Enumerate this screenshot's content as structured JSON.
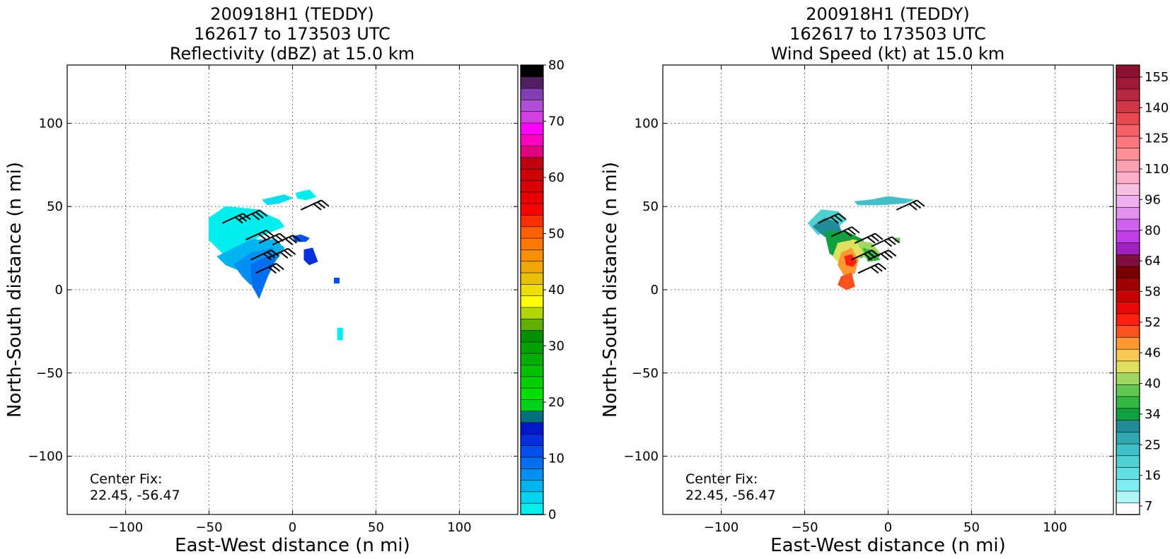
{
  "chart_data": [
    {
      "type": "heatmap",
      "title": [
        "200918H1 (TEDDY)",
        "162617 to 173503 UTC",
        "Reflectivity (dBZ) at 15.0 km"
      ],
      "xlabel": "East-West distance (n mi)",
      "ylabel": "North-South distance (n mi)",
      "xlim": [
        -135,
        135
      ],
      "ylim": [
        -135,
        135
      ],
      "xticks": [
        -100,
        -50,
        0,
        50,
        100
      ],
      "yticks": [
        -100,
        -50,
        0,
        50,
        100
      ],
      "xtick_labels": [
        "−100",
        "−50",
        "0",
        "50",
        "100"
      ],
      "ytick_labels": [
        "−100",
        "−50",
        "0",
        "50",
        "100"
      ],
      "grid": true,
      "annotation": [
        "Center Fix:",
        "22.45, -56.47"
      ],
      "colorbar": {
        "min": 0,
        "max": 80,
        "tick_values": [
          0,
          10,
          20,
          30,
          40,
          50,
          60,
          70,
          80
        ],
        "tick_labels": [
          "0",
          "10",
          "20",
          "30",
          "40",
          "50",
          "60",
          "70",
          "80"
        ],
        "colors": [
          "#00eeee",
          "#00d4ee",
          "#00b4f0",
          "#0090f0",
          "#0070f0",
          "#0050f0",
          "#0030e0",
          "#0018c8",
          "#007080",
          "#00d018",
          "#00e000",
          "#00d000",
          "#00c000",
          "#00b000",
          "#00a000",
          "#009000",
          "#60b000",
          "#b0d800",
          "#ffff00",
          "#eede00",
          "#e8c000",
          "#f0a800",
          "#f89000",
          "#ff7800",
          "#ff6000",
          "#ff3000",
          "#ff0000",
          "#e80000",
          "#d80000",
          "#cc0000",
          "#c00010",
          "#e00080",
          "#ff00c0",
          "#ff00ff",
          "#d040e0",
          "#b050d8",
          "#8040b0",
          "#502060",
          "#000000"
        ]
      },
      "regions": [
        {
          "color": "#00eeee",
          "points": [
            [
              -50,
              43
            ],
            [
              -40,
              50
            ],
            [
              -20,
              48
            ],
            [
              -15,
              45
            ],
            [
              -8,
              42
            ],
            [
              -5,
              38
            ],
            [
              -20,
              32
            ],
            [
              -35,
              20
            ],
            [
              -42,
              22
            ],
            [
              -50,
              30
            ]
          ]
        },
        {
          "color": "#00e0f0",
          "points": [
            [
              -18,
              54
            ],
            [
              -5,
              57
            ],
            [
              0,
              55
            ],
            [
              -8,
              52
            ],
            [
              -15,
              51
            ]
          ]
        },
        {
          "color": "#00eeee",
          "points": [
            [
              2,
              58
            ],
            [
              10,
              60
            ],
            [
              14,
              56
            ],
            [
              8,
              54
            ],
            [
              3,
              55
            ]
          ]
        },
        {
          "color": "#00b4f0",
          "points": [
            [
              -45,
              20
            ],
            [
              -35,
              25
            ],
            [
              -25,
              30
            ],
            [
              -10,
              30
            ],
            [
              -5,
              25
            ],
            [
              -10,
              18
            ],
            [
              -20,
              10
            ],
            [
              -28,
              10
            ],
            [
              -40,
              15
            ]
          ]
        },
        {
          "color": "#0090f0",
          "points": [
            [
              -35,
              15
            ],
            [
              -25,
              22
            ],
            [
              -12,
              25
            ],
            [
              -8,
              20
            ],
            [
              -15,
              12
            ],
            [
              -20,
              5
            ],
            [
              -25,
              3
            ],
            [
              -30,
              8
            ]
          ]
        },
        {
          "color": "#0070f0",
          "points": [
            [
              -25,
              15
            ],
            [
              -15,
              20
            ],
            [
              -10,
              18
            ],
            [
              -15,
              8
            ],
            [
              -18,
              0
            ],
            [
              -20,
              -5
            ],
            [
              -24,
              2
            ]
          ]
        },
        {
          "color": "#0050f0",
          "points": [
            [
              0,
              32
            ],
            [
              5,
              33
            ],
            [
              10,
              31
            ],
            [
              8,
              29
            ],
            [
              2,
              29
            ]
          ]
        },
        {
          "color": "#0030e0",
          "points": [
            [
              7,
              24
            ],
            [
              12,
              25
            ],
            [
              15,
              17
            ],
            [
              10,
              15
            ],
            [
              7,
              18
            ]
          ]
        },
        {
          "color": "#0050f0",
          "points": [
            [
              25,
              7
            ],
            [
              28,
              7
            ],
            [
              28,
              4
            ],
            [
              25,
              4
            ]
          ]
        },
        {
          "color": "#00eeee",
          "points": [
            [
              27,
              -23
            ],
            [
              30,
              -23
            ],
            [
              30,
              -30
            ],
            [
              27,
              -30
            ]
          ]
        }
      ],
      "wind_barbs": [
        {
          "x": -42,
          "y": 40
        },
        {
          "x": -32,
          "y": 42
        },
        {
          "x": -28,
          "y": 30
        },
        {
          "x": -20,
          "y": 28
        },
        {
          "x": -12,
          "y": 27
        },
        {
          "x": -25,
          "y": 18
        },
        {
          "x": -15,
          "y": 19
        },
        {
          "x": -22,
          "y": 10
        },
        {
          "x": 5,
          "y": 48
        }
      ]
    },
    {
      "type": "heatmap",
      "title": [
        "200918H1 (TEDDY)",
        "162617 to 173503 UTC",
        "Wind Speed (kt) at 15.0 km"
      ],
      "xlabel": "East-West distance (n mi)",
      "ylabel": "North-South distance (n mi)",
      "xlim": [
        -135,
        135
      ],
      "ylim": [
        -135,
        135
      ],
      "xticks": [
        -100,
        -50,
        0,
        50,
        100
      ],
      "yticks": [
        -100,
        -50,
        0,
        50,
        100
      ],
      "xtick_labels": [
        "−100",
        "−50",
        "0",
        "50",
        "100"
      ],
      "ytick_labels": [
        "−100",
        "−50",
        "0",
        "50",
        "100"
      ],
      "grid": true,
      "annotation": [
        "Center Fix:",
        "22.45, -56.47"
      ],
      "colorbar": {
        "tick_labels": [
          "7",
          "16",
          "25",
          "34",
          "40",
          "46",
          "52",
          "58",
          "64",
          "80",
          "96",
          "110",
          "125",
          "140",
          "155"
        ],
        "colors": [
          "#ffffff",
          "#b0f8f8",
          "#80eeee",
          "#60e0e0",
          "#50d0d0",
          "#40c0c8",
          "#30a8b0",
          "#208c98",
          "#10a040",
          "#30b840",
          "#60c850",
          "#a0d860",
          "#e0e060",
          "#f8c850",
          "#ff9830",
          "#ff5020",
          "#ff2010",
          "#e80808",
          "#c80000",
          "#a00000",
          "#780000",
          "#801040",
          "#a020c0",
          "#c040e8",
          "#d060f0",
          "#e090f0",
          "#f0b0f0",
          "#f8c0e0",
          "#ffb0c8",
          "#ffa0b0",
          "#ff9098",
          "#ff7880",
          "#f86068",
          "#e84850",
          "#d03848",
          "#b82840",
          "#a01838",
          "#901030"
        ]
      },
      "regions": [
        {
          "color": "#50d0d0",
          "points": [
            [
              -48,
              40
            ],
            [
              -40,
              48
            ],
            [
              -30,
              47
            ],
            [
              -25,
              42
            ],
            [
              -30,
              38
            ],
            [
              -42,
              33
            ]
          ]
        },
        {
          "color": "#208c98",
          "points": [
            [
              -45,
              38
            ],
            [
              -38,
              43
            ],
            [
              -30,
              40
            ],
            [
              -28,
              35
            ],
            [
              -38,
              32
            ]
          ]
        },
        {
          "color": "#40c0c8",
          "points": [
            [
              -20,
              53
            ],
            [
              -10,
              54
            ],
            [
              0,
              56
            ],
            [
              15,
              54
            ],
            [
              10,
              52
            ],
            [
              -5,
              51
            ],
            [
              -18,
              51
            ]
          ]
        },
        {
          "color": "#10a040",
          "points": [
            [
              -38,
              35
            ],
            [
              -25,
              35
            ],
            [
              -15,
              30
            ],
            [
              -15,
              20
            ],
            [
              -25,
              15
            ],
            [
              -35,
              22
            ]
          ]
        },
        {
          "color": "#a0d860",
          "points": [
            [
              -22,
              30
            ],
            [
              -10,
              28
            ],
            [
              -5,
              22
            ],
            [
              -10,
              18
            ],
            [
              -20,
              22
            ]
          ]
        },
        {
          "color": "#30b840",
          "points": [
            [
              -15,
              25
            ],
            [
              -8,
              23
            ],
            [
              -5,
              18
            ],
            [
              -12,
              17
            ]
          ]
        },
        {
          "color": "#e0e060",
          "points": [
            [
              -30,
              28
            ],
            [
              -20,
              30
            ],
            [
              -15,
              22
            ],
            [
              -20,
              15
            ],
            [
              -28,
              15
            ],
            [
              -33,
              20
            ]
          ]
        },
        {
          "color": "#ff9830",
          "points": [
            [
              -28,
              22
            ],
            [
              -22,
              25
            ],
            [
              -18,
              18
            ],
            [
              -20,
              10
            ],
            [
              -26,
              8
            ],
            [
              -30,
              15
            ]
          ]
        },
        {
          "color": "#ff2010",
          "points": [
            [
              -26,
              20
            ],
            [
              -22,
              21
            ],
            [
              -19,
              17
            ],
            [
              -21,
              14
            ],
            [
              -25,
              15
            ]
          ]
        },
        {
          "color": "#ff5020",
          "points": [
            [
              -28,
              8
            ],
            [
              -22,
              10
            ],
            [
              -20,
              2
            ],
            [
              -25,
              0
            ],
            [
              -30,
              3
            ]
          ]
        },
        {
          "color": "#60c850",
          "points": [
            [
              4,
              31
            ],
            [
              7,
              31
            ],
            [
              7,
              29
            ],
            [
              4,
              29
            ]
          ]
        }
      ],
      "wind_barbs": [
        {
          "x": -42,
          "y": 40
        },
        {
          "x": -34,
          "y": 32
        },
        {
          "x": -20,
          "y": 28
        },
        {
          "x": -10,
          "y": 26
        },
        {
          "x": -22,
          "y": 18
        },
        {
          "x": -12,
          "y": 18
        },
        {
          "x": -18,
          "y": 10
        },
        {
          "x": 5,
          "y": 48
        }
      ]
    }
  ]
}
